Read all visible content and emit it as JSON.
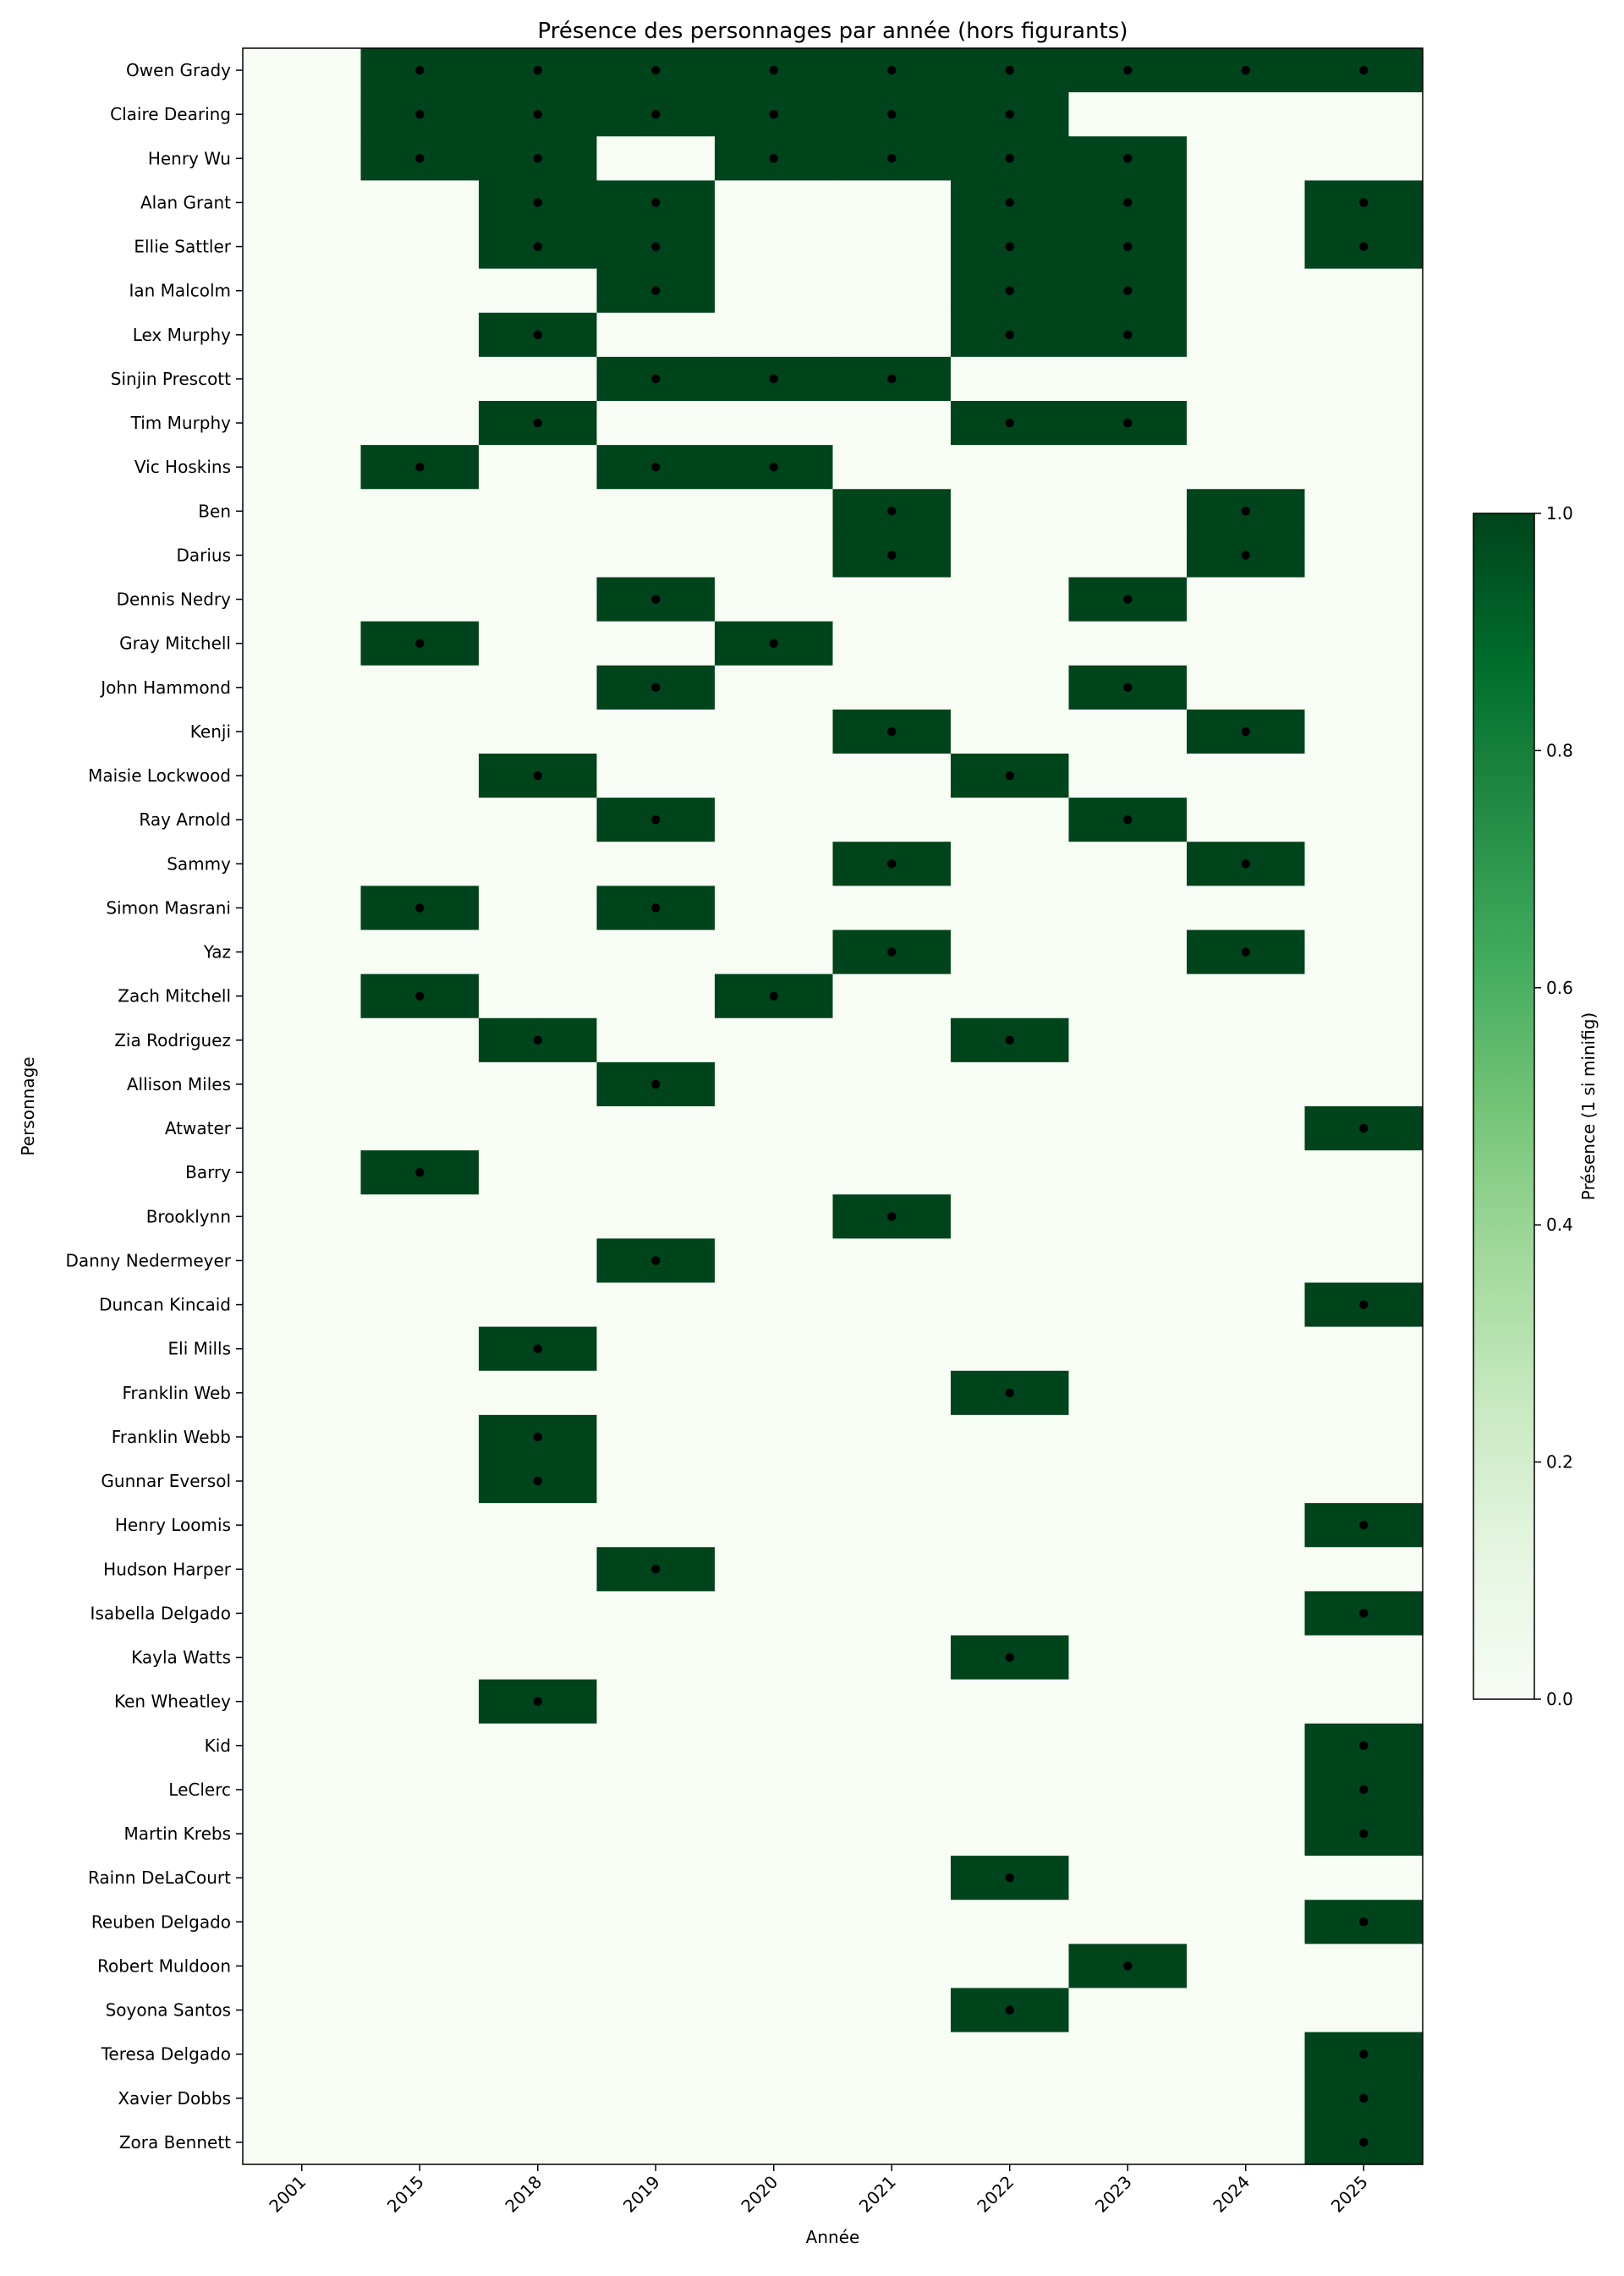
{
  "chart_data": {
    "type": "heatmap",
    "title": "Présence des personnages par année (hors figurants)",
    "xlabel": "Année",
    "ylabel": "Personnage",
    "x": [
      "2001",
      "2015",
      "2018",
      "2019",
      "2020",
      "2021",
      "2022",
      "2023",
      "2024",
      "2025"
    ],
    "y": [
      "Owen Grady",
      "Claire Dearing",
      "Henry Wu",
      "Alan Grant",
      "Ellie Sattler",
      "Ian Malcolm",
      "Lex Murphy",
      "Sinjin Prescott",
      "Tim Murphy",
      "Vic Hoskins",
      "Ben",
      "Darius",
      "Dennis Nedry",
      "Gray Mitchell",
      "John Hammond",
      "Kenji",
      "Maisie Lockwood",
      "Ray Arnold",
      "Sammy",
      "Simon Masrani",
      "Yaz",
      "Zach Mitchell",
      "Zia Rodriguez",
      "Allison Miles",
      "Atwater",
      "Barry",
      "Brooklynn",
      "Danny Nedermeyer",
      "Duncan Kincaid",
      "Eli Mills",
      "Franklin Web",
      "Franklin Webb",
      "Gunnar Eversol",
      "Henry Loomis",
      "Hudson Harper",
      "Isabella Delgado",
      "Kayla Watts",
      "Ken Wheatley",
      "Kid",
      "LeClerc",
      "Martin Krebs",
      "Rainn DeLaCourt",
      "Reuben Delgado",
      "Robert Muldoon",
      "Soyona Santos",
      "Teresa Delgado",
      "Xavier Dobbs",
      "Zora Bennett"
    ],
    "values": [
      [
        0,
        1,
        1,
        1,
        1,
        1,
        1,
        1,
        1,
        1
      ],
      [
        0,
        1,
        1,
        1,
        1,
        1,
        1,
        0,
        0,
        0
      ],
      [
        0,
        1,
        1,
        0,
        1,
        1,
        1,
        1,
        0,
        0
      ],
      [
        0,
        0,
        1,
        1,
        0,
        0,
        1,
        1,
        0,
        1
      ],
      [
        0,
        0,
        1,
        1,
        0,
        0,
        1,
        1,
        0,
        1
      ],
      [
        0,
        0,
        0,
        1,
        0,
        0,
        1,
        1,
        0,
        0
      ],
      [
        0,
        0,
        1,
        0,
        0,
        0,
        1,
        1,
        0,
        0
      ],
      [
        0,
        0,
        0,
        1,
        1,
        1,
        0,
        0,
        0,
        0
      ],
      [
        0,
        0,
        1,
        0,
        0,
        0,
        1,
        1,
        0,
        0
      ],
      [
        0,
        1,
        0,
        1,
        1,
        0,
        0,
        0,
        0,
        0
      ],
      [
        0,
        0,
        0,
        0,
        0,
        1,
        0,
        0,
        1,
        0
      ],
      [
        0,
        0,
        0,
        0,
        0,
        1,
        0,
        0,
        1,
        0
      ],
      [
        0,
        0,
        0,
        1,
        0,
        0,
        0,
        1,
        0,
        0
      ],
      [
        0,
        1,
        0,
        0,
        1,
        0,
        0,
        0,
        0,
        0
      ],
      [
        0,
        0,
        0,
        1,
        0,
        0,
        0,
        1,
        0,
        0
      ],
      [
        0,
        0,
        0,
        0,
        0,
        1,
        0,
        0,
        1,
        0
      ],
      [
        0,
        0,
        1,
        0,
        0,
        0,
        1,
        0,
        0,
        0
      ],
      [
        0,
        0,
        0,
        1,
        0,
        0,
        0,
        1,
        0,
        0
      ],
      [
        0,
        0,
        0,
        0,
        0,
        1,
        0,
        0,
        1,
        0
      ],
      [
        0,
        1,
        0,
        1,
        0,
        0,
        0,
        0,
        0,
        0
      ],
      [
        0,
        0,
        0,
        0,
        0,
        1,
        0,
        0,
        1,
        0
      ],
      [
        0,
        1,
        0,
        0,
        1,
        0,
        0,
        0,
        0,
        0
      ],
      [
        0,
        0,
        1,
        0,
        0,
        0,
        1,
        0,
        0,
        0
      ],
      [
        0,
        0,
        0,
        1,
        0,
        0,
        0,
        0,
        0,
        0
      ],
      [
        0,
        0,
        0,
        0,
        0,
        0,
        0,
        0,
        0,
        1
      ],
      [
        0,
        1,
        0,
        0,
        0,
        0,
        0,
        0,
        0,
        0
      ],
      [
        0,
        0,
        0,
        0,
        0,
        1,
        0,
        0,
        0,
        0
      ],
      [
        0,
        0,
        0,
        1,
        0,
        0,
        0,
        0,
        0,
        0
      ],
      [
        0,
        0,
        0,
        0,
        0,
        0,
        0,
        0,
        0,
        1
      ],
      [
        0,
        0,
        1,
        0,
        0,
        0,
        0,
        0,
        0,
        0
      ],
      [
        0,
        0,
        0,
        0,
        0,
        0,
        1,
        0,
        0,
        0
      ],
      [
        0,
        0,
        1,
        0,
        0,
        0,
        0,
        0,
        0,
        0
      ],
      [
        0,
        0,
        1,
        0,
        0,
        0,
        0,
        0,
        0,
        0
      ],
      [
        0,
        0,
        0,
        0,
        0,
        0,
        0,
        0,
        0,
        1
      ],
      [
        0,
        0,
        0,
        1,
        0,
        0,
        0,
        0,
        0,
        0
      ],
      [
        0,
        0,
        0,
        0,
        0,
        0,
        0,
        0,
        0,
        1
      ],
      [
        0,
        0,
        0,
        0,
        0,
        0,
        1,
        0,
        0,
        0
      ],
      [
        0,
        0,
        1,
        0,
        0,
        0,
        0,
        0,
        0,
        0
      ],
      [
        0,
        0,
        0,
        0,
        0,
        0,
        0,
        0,
        0,
        1
      ],
      [
        0,
        0,
        0,
        0,
        0,
        0,
        0,
        0,
        0,
        1
      ],
      [
        0,
        0,
        0,
        0,
        0,
        0,
        0,
        0,
        0,
        1
      ],
      [
        0,
        0,
        0,
        0,
        0,
        0,
        1,
        0,
        0,
        0
      ],
      [
        0,
        0,
        0,
        0,
        0,
        0,
        0,
        0,
        0,
        1
      ],
      [
        0,
        0,
        0,
        0,
        0,
        0,
        0,
        1,
        0,
        0
      ],
      [
        0,
        0,
        0,
        0,
        0,
        0,
        1,
        0,
        0,
        0
      ],
      [
        0,
        0,
        0,
        0,
        0,
        0,
        0,
        0,
        0,
        1
      ],
      [
        0,
        0,
        0,
        0,
        0,
        0,
        0,
        0,
        0,
        1
      ],
      [
        0,
        0,
        0,
        0,
        0,
        0,
        0,
        0,
        0,
        1
      ]
    ],
    "colorbar": {
      "label": "Présence (1 si minifig)",
      "range": [
        0,
        1
      ],
      "ticks": [
        "0.0",
        "0.2",
        "0.4",
        "0.6",
        "0.8",
        "1.0"
      ],
      "colormap": "Greens"
    },
    "markers": "dot in each cell with value 1",
    "colors": {
      "present": "#00441b",
      "absent": "#f7fcf5",
      "dot": "#000000"
    }
  }
}
